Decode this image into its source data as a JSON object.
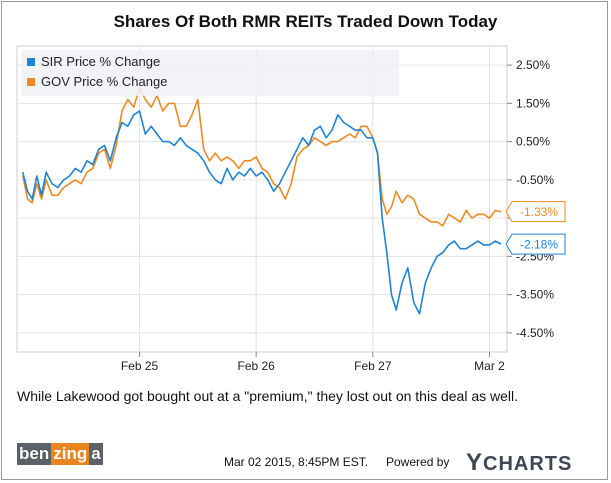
{
  "title": "Shares Of Both RMR REITs Traded Down Today",
  "caption": "While Lakewood got bought out at a \"premium,\" they lost out on this deal as well.",
  "footer": {
    "date": "Mar 02 2015, 8:45PM EST.",
    "powered_by": "Powered by",
    "brand": "CHARTS",
    "brand_letter": "Y",
    "logo_parts": [
      "ben",
      "zing",
      "a"
    ]
  },
  "colors": {
    "sir": "#1f84d6",
    "gov": "#ee8a22",
    "grid": "#e3e3e3",
    "plot_bg": "#ffffff",
    "legend_bg": "#eef1f6"
  },
  "chart_data": {
    "type": "line",
    "title": "Shares Of Both RMR REITs Traded Down Today",
    "x_ticks": [
      "Feb 25",
      "Feb 26",
      "Feb 27",
      "Mar 2"
    ],
    "y_ticks": [
      "2.50%",
      "1.50%",
      "0.50%",
      "-0.50%",
      "-1.50%",
      "-2.50%",
      "-3.50%",
      "-4.50%"
    ],
    "ylim": [
      -5.0,
      3.0
    ],
    "legend": "top-left",
    "grid": true,
    "end_labels": {
      "gov": "-1.33%",
      "sir": "-2.18%"
    },
    "series": [
      {
        "name": "SIR Price % Change",
        "key": "sir",
        "x": [
          0,
          0.04,
          0.08,
          0.12,
          0.16,
          0.2,
          0.25,
          0.3,
          0.35,
          0.4,
          0.45,
          0.5,
          0.55,
          0.6,
          0.65,
          0.7,
          0.75,
          0.8,
          0.85,
          0.9,
          0.95,
          1.0,
          1.05,
          1.1,
          1.15,
          1.2,
          1.25,
          1.3,
          1.35,
          1.4,
          1.45,
          1.5,
          1.55,
          1.6,
          1.65,
          1.7,
          1.75,
          1.8,
          1.85,
          1.9,
          1.95,
          2.0,
          2.05,
          2.1,
          2.15,
          2.2,
          2.25,
          2.3,
          2.35,
          2.4,
          2.45,
          2.5,
          2.55,
          2.6,
          2.65,
          2.7,
          2.75,
          2.8,
          2.85,
          2.9,
          2.95,
          3.0,
          3.04,
          3.08,
          3.12,
          3.16,
          3.2,
          3.25,
          3.3,
          3.35,
          3.4,
          3.45,
          3.5,
          3.55,
          3.6,
          3.65,
          3.7,
          3.75,
          3.8,
          3.85,
          3.9,
          3.95,
          4.0,
          4.05,
          4.1
        ],
        "values": [
          -0.3,
          -0.8,
          -1.0,
          -0.4,
          -0.9,
          -0.3,
          -0.6,
          -0.7,
          -0.5,
          -0.4,
          -0.2,
          -0.3,
          0.0,
          -0.1,
          0.3,
          0.4,
          0.0,
          0.6,
          1.0,
          0.9,
          1.2,
          1.3,
          0.7,
          0.9,
          0.7,
          0.5,
          0.5,
          0.4,
          0.6,
          0.4,
          0.3,
          0.2,
          0.0,
          -0.3,
          -0.5,
          -0.6,
          -0.2,
          -0.5,
          -0.3,
          -0.4,
          -0.2,
          -0.4,
          -0.3,
          -0.5,
          -0.8,
          -0.6,
          -0.3,
          0.0,
          0.3,
          0.6,
          0.4,
          0.8,
          0.9,
          0.6,
          0.8,
          1.2,
          1.0,
          0.9,
          0.8,
          0.8,
          0.6,
          0.6,
          0.2,
          -1.5,
          -2.4,
          -3.5,
          -3.9,
          -3.2,
          -2.8,
          -3.7,
          -4.0,
          -3.2,
          -2.8,
          -2.5,
          -2.4,
          -2.2,
          -2.1,
          -2.3,
          -2.3,
          -2.2,
          -2.1,
          -2.2,
          -2.2,
          -2.1,
          -2.18
        ]
      },
      {
        "name": "GOV Price % Change",
        "key": "gov",
        "x": [
          0,
          0.04,
          0.08,
          0.12,
          0.16,
          0.2,
          0.25,
          0.3,
          0.35,
          0.4,
          0.45,
          0.5,
          0.55,
          0.6,
          0.65,
          0.7,
          0.75,
          0.8,
          0.85,
          0.9,
          0.95,
          1.0,
          1.05,
          1.1,
          1.15,
          1.2,
          1.25,
          1.3,
          1.35,
          1.4,
          1.45,
          1.5,
          1.55,
          1.6,
          1.65,
          1.7,
          1.75,
          1.8,
          1.85,
          1.9,
          1.95,
          2.0,
          2.05,
          2.1,
          2.15,
          2.2,
          2.25,
          2.3,
          2.35,
          2.4,
          2.45,
          2.5,
          2.55,
          2.6,
          2.65,
          2.7,
          2.75,
          2.8,
          2.85,
          2.9,
          2.95,
          3.0,
          3.04,
          3.08,
          3.12,
          3.16,
          3.2,
          3.25,
          3.3,
          3.35,
          3.4,
          3.45,
          3.5,
          3.55,
          3.6,
          3.65,
          3.7,
          3.75,
          3.8,
          3.85,
          3.9,
          3.95,
          4.0,
          4.05,
          4.1
        ],
        "values": [
          -0.4,
          -1.0,
          -1.1,
          -0.6,
          -1.0,
          -0.5,
          -0.9,
          -0.9,
          -0.7,
          -0.6,
          -0.5,
          -0.6,
          -0.3,
          -0.2,
          0.2,
          0.3,
          -0.2,
          0.4,
          1.3,
          1.6,
          1.4,
          1.9,
          1.6,
          1.4,
          1.7,
          1.3,
          1.5,
          1.5,
          0.9,
          0.9,
          1.2,
          1.6,
          0.3,
          0.0,
          0.2,
          0.0,
          0.1,
          0.0,
          -0.2,
          0.0,
          0.0,
          0.1,
          -0.2,
          -0.3,
          -0.6,
          -0.7,
          -1.0,
          -0.6,
          0.1,
          0.3,
          0.4,
          0.6,
          0.5,
          0.4,
          0.5,
          0.5,
          0.6,
          0.7,
          0.6,
          0.9,
          0.9,
          0.6,
          0.2,
          -1.0,
          -1.4,
          -1.2,
          -0.8,
          -1.1,
          -0.9,
          -1.0,
          -1.4,
          -1.5,
          -1.6,
          -1.6,
          -1.7,
          -1.4,
          -1.5,
          -1.6,
          -1.3,
          -1.5,
          -1.4,
          -1.4,
          -1.5,
          -1.3,
          -1.33
        ]
      }
    ]
  }
}
